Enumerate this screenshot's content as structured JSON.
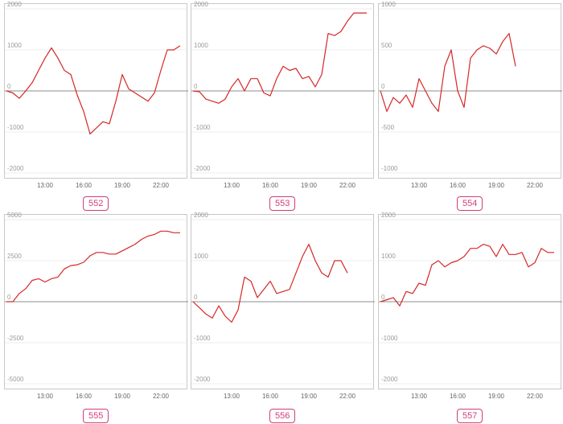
{
  "chart_data": [
    {
      "type": "line",
      "label": "552",
      "x_ticks": [
        "13:00",
        "16:00",
        "19:00",
        "22:00"
      ],
      "y_ticks": [
        -2000,
        -1000,
        0,
        1000,
        2000
      ],
      "ylim": [
        -2000,
        2000
      ],
      "xlim": [
        10,
        24
      ],
      "grid": true,
      "color": "#d62728",
      "x": [
        10,
        10.5,
        11,
        11.5,
        12,
        12.5,
        13,
        13.5,
        14,
        14.5,
        15,
        15.5,
        16,
        16.5,
        17,
        17.5,
        18,
        18.5,
        19,
        19.5,
        20,
        20.5,
        21,
        21.5,
        22,
        22.5,
        23,
        23.5
      ],
      "y": [
        0,
        -50,
        -180,
        0,
        200,
        500,
        800,
        1050,
        800,
        500,
        400,
        -100,
        -500,
        -1050,
        -900,
        -750,
        -800,
        -250,
        400,
        50,
        -50,
        -150,
        -250,
        -50,
        500,
        1000,
        1000,
        1100
      ]
    },
    {
      "type": "line",
      "label": "553",
      "x_ticks": [
        "13:00",
        "16:00",
        "19:00",
        "22:00"
      ],
      "y_ticks": [
        -2000,
        -1000,
        0,
        1000,
        2000
      ],
      "ylim": [
        -2000,
        2000
      ],
      "xlim": [
        10,
        24
      ],
      "grid": true,
      "color": "#d62728",
      "x": [
        10,
        10.5,
        11,
        11.5,
        12,
        12.5,
        13,
        13.5,
        14,
        14.5,
        15,
        15.5,
        16,
        16.5,
        17,
        17.5,
        18,
        18.5,
        19,
        19.5,
        20,
        20.5,
        21,
        21.5,
        22,
        22.5,
        23,
        23.5
      ],
      "y": [
        0,
        -20,
        -200,
        -250,
        -300,
        -200,
        100,
        300,
        0,
        300,
        300,
        -50,
        -120,
        300,
        600,
        500,
        550,
        300,
        350,
        100,
        400,
        1400,
        1350,
        1450,
        1700,
        1900,
        1900,
        1900
      ]
    },
    {
      "type": "line",
      "label": "554",
      "x_ticks": [
        "13:00",
        "16:00",
        "19:00",
        "22:00"
      ],
      "y_ticks": [
        -1000,
        -500,
        0,
        500,
        1000
      ],
      "ylim": [
        -1000,
        1000
      ],
      "xlim": [
        10,
        24
      ],
      "grid": true,
      "color": "#d62728",
      "x": [
        10,
        10.5,
        11,
        11.5,
        12,
        12.5,
        13,
        13.5,
        14,
        14.5,
        15,
        15.5,
        16,
        16.5,
        17,
        17.5,
        18,
        18.5,
        19,
        19.5,
        20,
        20.5
      ],
      "y": [
        0,
        -250,
        -80,
        -150,
        -50,
        -200,
        150,
        0,
        -150,
        -250,
        300,
        500,
        0,
        -200,
        400,
        500,
        550,
        520,
        450,
        600,
        700,
        300
      ]
    },
    {
      "type": "line",
      "label": "555",
      "x_ticks": [
        "13:00",
        "16:00",
        "19:00",
        "22:00"
      ],
      "y_ticks": [
        -5000,
        -2500,
        0,
        2500,
        5000
      ],
      "ylim": [
        -5000,
        5000
      ],
      "xlim": [
        10,
        24
      ],
      "grid": true,
      "color": "#d62728",
      "x": [
        10,
        10.5,
        11,
        11.5,
        12,
        12.5,
        13,
        13.5,
        14,
        14.5,
        15,
        15.5,
        16,
        16.5,
        17,
        17.5,
        18,
        18.5,
        19,
        19.5,
        20,
        20.5,
        21,
        21.5,
        22,
        22.5,
        23,
        23.5
      ],
      "y": [
        0,
        0,
        500,
        800,
        1300,
        1400,
        1200,
        1400,
        1500,
        2000,
        2200,
        2250,
        2400,
        2800,
        3000,
        3000,
        2900,
        2900,
        3100,
        3300,
        3500,
        3800,
        4000,
        4100,
        4300,
        4300,
        4200,
        4200
      ]
    },
    {
      "type": "line",
      "label": "556",
      "x_ticks": [
        "13:00",
        "16:00",
        "19:00",
        "22:00"
      ],
      "y_ticks": [
        -2000,
        -1000,
        0,
        1000,
        2000
      ],
      "ylim": [
        -2000,
        2000
      ],
      "xlim": [
        10,
        24
      ],
      "grid": true,
      "color": "#d62728",
      "x": [
        10,
        10.5,
        11,
        11.5,
        12,
        12.5,
        13,
        13.5,
        14,
        14.5,
        15,
        15.5,
        16,
        16.5,
        17,
        17.5,
        18,
        18.5,
        19,
        19.5,
        20,
        20.5,
        21,
        21.5,
        22
      ],
      "y": [
        0,
        -150,
        -300,
        -400,
        -100,
        -350,
        -500,
        -200,
        600,
        500,
        100,
        300,
        500,
        200,
        250,
        300,
        700,
        1100,
        1400,
        1000,
        700,
        600,
        1000,
        1000,
        700
      ]
    },
    {
      "type": "line",
      "label": "557",
      "x_ticks": [
        "13:00",
        "16:00",
        "19:00",
        "22:00"
      ],
      "y_ticks": [
        -2000,
        -1000,
        0,
        1000,
        2000
      ],
      "ylim": [
        -2000,
        2000
      ],
      "xlim": [
        10,
        24
      ],
      "grid": true,
      "color": "#d62728",
      "x": [
        10,
        10.5,
        11,
        11.5,
        12,
        12.5,
        13,
        13.5,
        14,
        14.5,
        15,
        15.5,
        16,
        16.5,
        17,
        17.5,
        18,
        18.5,
        19,
        19.5,
        20,
        20.5,
        21,
        21.5,
        22,
        22.5,
        23,
        23.5
      ],
      "y": [
        0,
        50,
        100,
        -100,
        250,
        200,
        450,
        400,
        900,
        1000,
        850,
        950,
        1000,
        1100,
        1300,
        1300,
        1400,
        1350,
        1100,
        1400,
        1150,
        1150,
        1200,
        850,
        950,
        1300,
        1200,
        1200
      ]
    }
  ]
}
